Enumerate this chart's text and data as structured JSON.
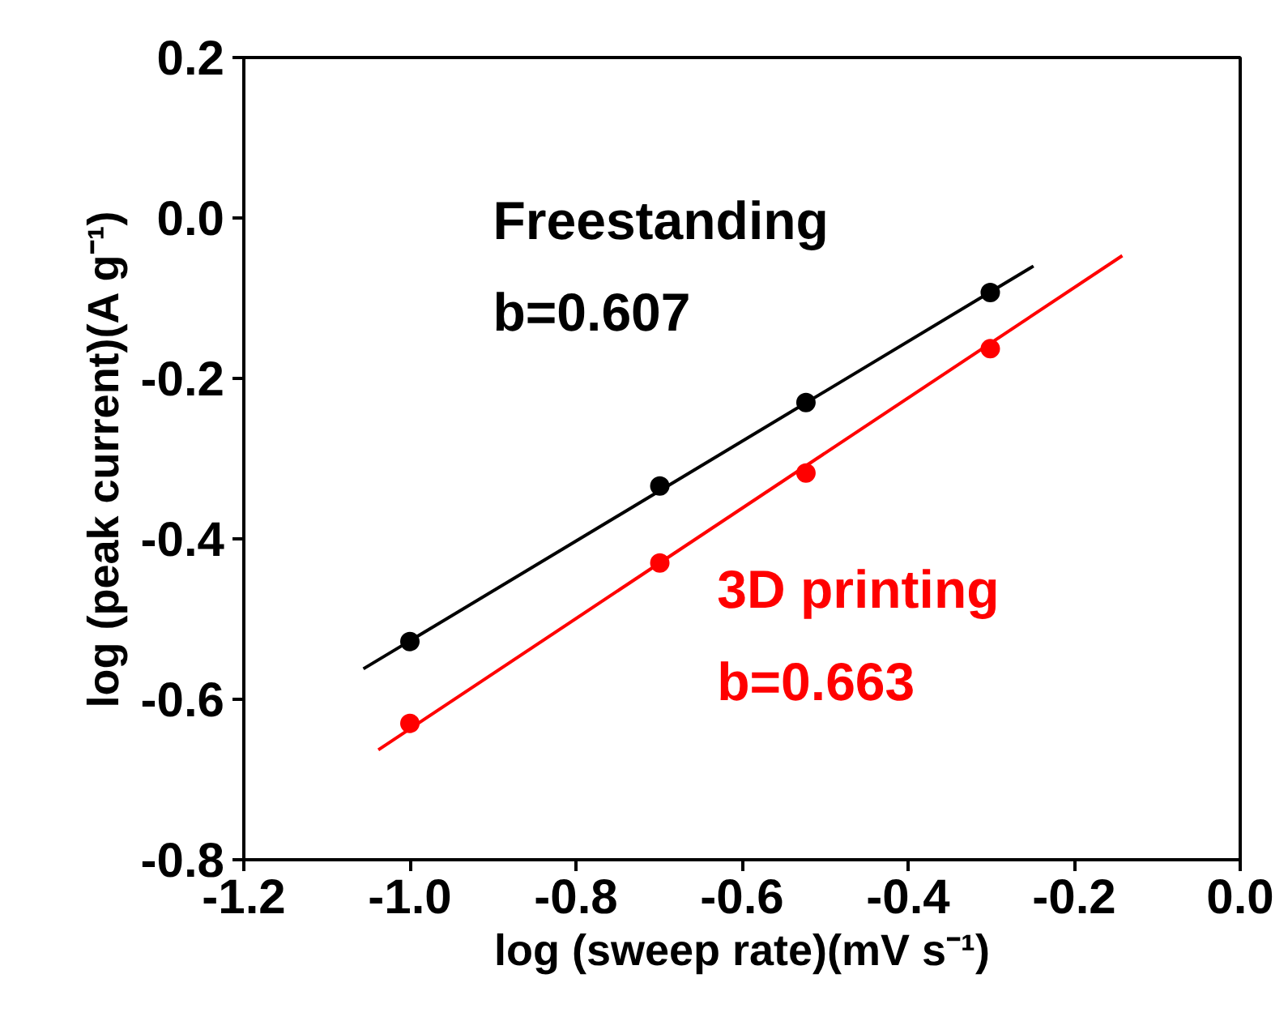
{
  "chart_data": {
    "type": "scatter",
    "xlabel": "log (sweep rate)(mV s⁻¹)",
    "ylabel": "log (peak current)(A g⁻¹)",
    "x": [
      -1.0,
      -0.699,
      -0.523,
      -0.301
    ],
    "series": [
      {
        "name": "Freestanding",
        "color": "#000000",
        "values": [
          -0.528,
          -0.334,
          -0.23,
          -0.093
        ]
      },
      {
        "name": "3D printing",
        "color": "#ff0000",
        "values": [
          -0.63,
          -0.43,
          -0.318,
          -0.163
        ]
      },
      {
        "type": "line",
        "marker": "none",
        "color": "#000000",
        "x": [
          -1.056,
          -0.249
        ],
        "values": [
          -0.562,
          -0.06
        ]
      },
      {
        "type": "line",
        "marker": "none",
        "color": "#ff0000",
        "x": [
          -1.038,
          -0.142
        ],
        "values": [
          -0.663,
          -0.047
        ]
      }
    ],
    "annotations": [
      "b=0.607",
      "b=0.663"
    ],
    "xlim": [
      -1.2,
      0.0
    ],
    "xticks": [
      {
        "value": -1.2,
        "label": "-1.2"
      },
      {
        "value": -1.0,
        "label": "-1.0"
      },
      {
        "value": -0.8,
        "label": "-0.8"
      },
      {
        "value": -0.6,
        "label": "-0.6"
      },
      {
        "value": -0.4,
        "label": "-0.4"
      },
      {
        "value": -0.2,
        "label": "-0.2"
      },
      {
        "value": 0.0,
        "label": "0.0"
      }
    ],
    "ylim": [
      -0.8,
      0.2
    ],
    "yticks": [
      {
        "value": -0.8,
        "label": "-0.8"
      },
      {
        "value": -0.6,
        "label": "-0.6"
      },
      {
        "value": -0.4,
        "label": "-0.4"
      },
      {
        "value": -0.2,
        "label": "-0.2"
      },
      {
        "value": 0.0,
        "label": "0.0"
      },
      {
        "value": 0.2,
        "label": "0.2"
      }
    ],
    "marker": "circle",
    "grid": false
  }
}
